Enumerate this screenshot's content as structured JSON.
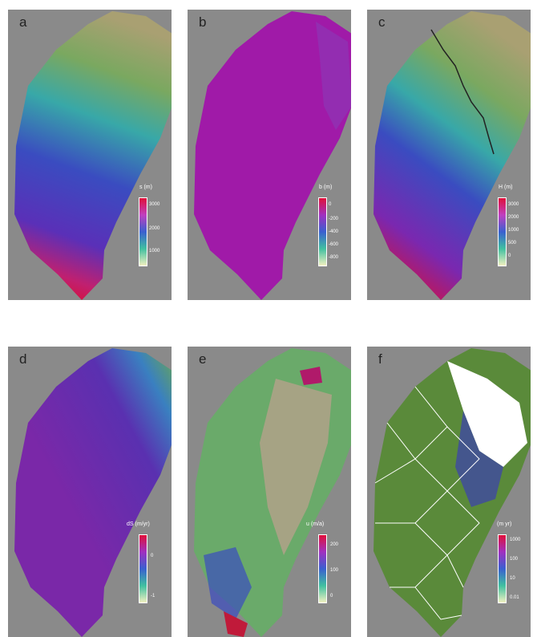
{
  "panels": [
    {
      "label": "a",
      "colorbar_title": "s (m)",
      "ticks": [
        "3000",
        "2000",
        "1000"
      ]
    },
    {
      "label": "b",
      "colorbar_title": "b (m)",
      "ticks": [
        "0",
        "-200",
        "-400",
        "-600",
        "-800"
      ]
    },
    {
      "label": "c",
      "colorbar_title": "H (m)",
      "ticks": [
        "3000",
        "2000",
        "1000",
        "500",
        "0"
      ]
    },
    {
      "label": "d",
      "colorbar_title": "dS (m/yr)",
      "ticks": [
        "0",
        "-1"
      ]
    },
    {
      "label": "e",
      "colorbar_title": "u (m/a)",
      "ticks": [
        "200",
        "100",
        "0"
      ]
    },
    {
      "label": "f",
      "colorbar_title": "(m yr)",
      "ticks": [
        "1000",
        "100",
        "10",
        "0.01"
      ]
    }
  ],
  "colors": {
    "background": "#8a8a8a",
    "mask": "#ffffff",
    "mesh_green": "#5a8a3a"
  }
}
